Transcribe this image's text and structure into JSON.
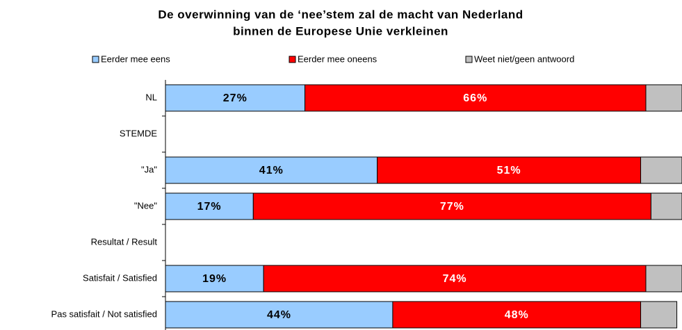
{
  "chart_data": {
    "type": "stacked-barh",
    "title": [
      "De overwinning van de ‘nee’stem zal de macht van Nederland",
      "binnen de Europese Unie verkleinen"
    ],
    "categories": [
      "NL",
      "STEMDE",
      "\"Ja\"",
      "\"Nee\"",
      "Resultat / Result",
      "Satisfait / Satisfied",
      "Pas satisfait / Not satisfied"
    ],
    "series": [
      {
        "name": "Eerder mee eens",
        "color": "#99ccff",
        "values": [
          27,
          null,
          41,
          17,
          null,
          19,
          44
        ],
        "value_labels": [
          "27%",
          null,
          "41%",
          "17%",
          null,
          "19%",
          "44%"
        ]
      },
      {
        "name": "Eerder mee oneens",
        "color": "#ff0000",
        "values": [
          66,
          null,
          51,
          77,
          null,
          74,
          48
        ],
        "value_labels": [
          "66%",
          null,
          "51%",
          "77%",
          null,
          "74%",
          "48%"
        ]
      },
      {
        "name": "Weet niet/geen antwoord",
        "color": "#c0c0c0",
        "values": [
          7,
          null,
          8,
          6,
          null,
          7,
          7
        ]
      }
    ],
    "xlim": [
      0,
      100
    ],
    "legend": "top"
  }
}
